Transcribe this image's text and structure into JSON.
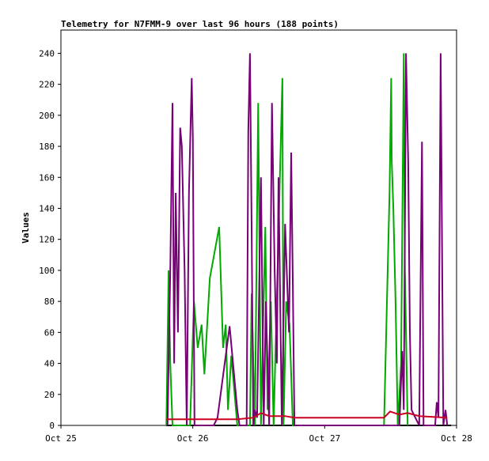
{
  "chart_data": {
    "type": "line",
    "title": "Telemetry for N7FMM-9 over last 96 hours (188 points)",
    "y_label": "Values",
    "xlim": [
      0,
      72
    ],
    "xticks": [
      {
        "value": 0,
        "label": "Oct 25"
      },
      {
        "value": 24,
        "label": "Oct 26"
      },
      {
        "value": 48,
        "label": "Oct 27"
      },
      {
        "value": 72,
        "label": "Oct 28"
      }
    ],
    "ylim": [
      0,
      255
    ],
    "yticks": [
      0,
      20,
      40,
      60,
      80,
      100,
      120,
      140,
      160,
      180,
      200,
      220,
      240
    ],
    "series": [
      {
        "color": "#000000",
        "x": [
          19.2,
          71.0
        ],
        "values": [
          0,
          0
        ]
      },
      {
        "color": "#00aa00",
        "x": [
          19.2,
          19.6,
          19.9,
          20.3,
          23.5,
          24.2,
          24.9,
          25.6,
          26.1,
          27.1,
          28.8,
          29.5,
          30.0,
          30.4,
          31.0,
          32.1,
          34.4,
          34.7,
          35.3,
          35.9,
          36.4,
          37.2,
          37.6,
          38.2,
          38.7,
          40.3,
          40.5,
          41.0,
          41.6,
          42.2,
          58.8,
          59.8,
          60.1,
          60.2,
          60.5,
          60.9,
          61.3,
          61.9,
          62.4,
          62.6,
          63.1
        ],
        "values": [
          0,
          100,
          40,
          0,
          0,
          80,
          50,
          65,
          33,
          95,
          128,
          50,
          65,
          10,
          45,
          0,
          0,
          85,
          0,
          208,
          0,
          128,
          10,
          80,
          0,
          224,
          0,
          80,
          65,
          0,
          0,
          150,
          224,
          170,
          140,
          80,
          0,
          40,
          240,
          100,
          0
        ]
      },
      {
        "color": "#770077",
        "x": [
          19.4,
          19.9,
          20.3,
          20.6,
          20.9,
          21.3,
          21.7,
          22.0,
          22.5,
          22.9,
          23.3,
          23.8,
          24.0,
          24.3,
          27.8,
          28.5,
          30.7,
          32.1,
          32.5,
          33.8,
          34.1,
          34.4,
          34.7,
          35.0,
          35.3,
          35.7,
          36.4,
          36.9,
          37.3,
          37.9,
          38.4,
          38.9,
          39.3,
          39.6,
          40.2,
          40.8,
          41.5,
          41.9,
          42.2,
          42.5,
          61.6,
          62.1,
          62.4,
          62.8,
          63.2,
          63.5,
          63.8,
          65.2,
          65.7,
          66.0,
          68.1,
          68.4,
          68.7,
          69.1,
          69.6,
          70.0,
          70.3
        ],
        "values": [
          0,
          100,
          208,
          40,
          150,
          60,
          192,
          180,
          100,
          0,
          150,
          224,
          186,
          0,
          0,
          5,
          64,
          10,
          0,
          0,
          190,
          240,
          128,
          0,
          10,
          5,
          160,
          0,
          80,
          0,
          208,
          100,
          40,
          160,
          0,
          130,
          60,
          176,
          90,
          0,
          0,
          48,
          10,
          240,
          170,
          60,
          10,
          0,
          183,
          0,
          0,
          15,
          5,
          240,
          0,
          10,
          0
        ]
      },
      {
        "color": "#cc0022",
        "x": [
          19.2,
          32.1,
          35.0,
          36.4,
          37.9,
          40.8,
          42.5,
          58.8,
          59.9,
          61.6,
          63.1,
          65.2,
          70.3
        ],
        "values": [
          4,
          4,
          5,
          8,
          6,
          6,
          5,
          5,
          9,
          7,
          8,
          6,
          5
        ]
      }
    ]
  }
}
